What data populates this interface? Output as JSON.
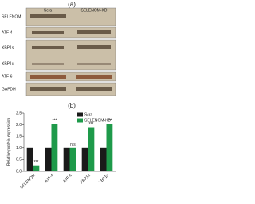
{
  "figure_labels": [
    "(a)",
    "(b)"
  ],
  "blot": {
    "lanes": [
      "Scra",
      "SELENOM-KD"
    ],
    "rows": [
      "SELENOM",
      "ATF-4",
      "XBP1s",
      "XBP1u",
      "ATF-6",
      "GAPDH"
    ]
  },
  "chart_data": {
    "type": "bar",
    "y_label": "Relative protein expression",
    "categories": [
      "SELENOM",
      "ATF-4",
      "ATF-6",
      "XBP1u",
      "XBP1s"
    ],
    "series": [
      {
        "name": "Scra",
        "color": "#1a1a1a",
        "values": [
          1.0,
          1.0,
          1.0,
          1.0,
          1.0
        ]
      },
      {
        "name": "SELENOM-KD",
        "color": "#1e9a4a",
        "values": [
          0.25,
          2.05,
          1.0,
          1.9,
          2.05
        ]
      }
    ],
    "annotations": [
      "***",
      "***",
      "n/s",
      "***",
      "***"
    ],
    "ylim": [
      0,
      2.5
    ],
    "yticks": [
      {
        "value": 0,
        "label": "0.0"
      },
      {
        "value": 0.5,
        "label": "0.5"
      },
      {
        "value": 1,
        "label": "1.0"
      },
      {
        "value": 1.5,
        "label": "1.5"
      },
      {
        "value": 2,
        "label": "2.0"
      },
      {
        "value": 2.5,
        "label": "2.5"
      }
    ],
    "legend": "top-right"
  }
}
